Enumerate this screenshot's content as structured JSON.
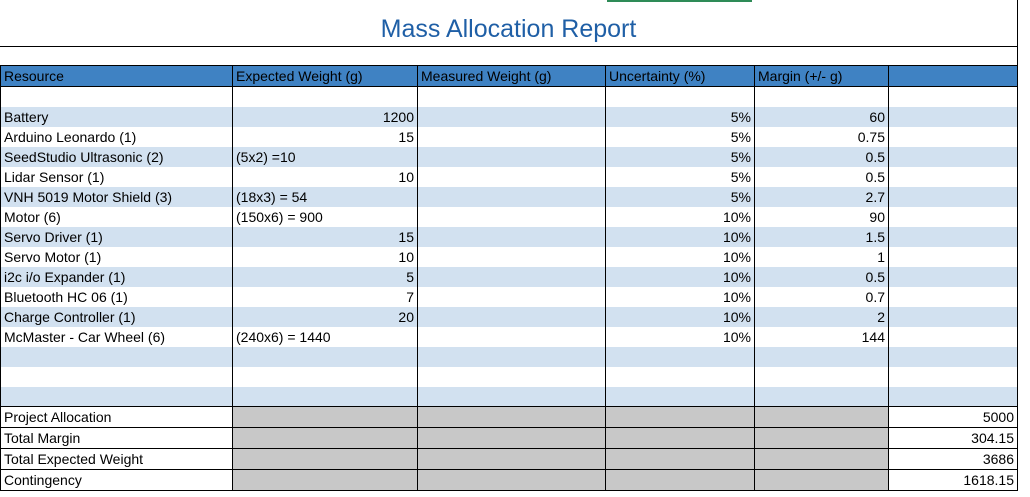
{
  "report": {
    "title": "Mass Allocation Report"
  },
  "columns": [
    "Resource",
    "Expected Weight (g)",
    "Measured Weight (g)",
    "Uncertainty (%)",
    "Margin (+/- g)",
    ""
  ],
  "items": [
    {
      "resource": "Battery",
      "expected": "1200",
      "measured": "",
      "uncertainty": "5%",
      "margin": "60"
    },
    {
      "resource": " Arduino Leonardo (1)",
      "expected": "15",
      "measured": "",
      "uncertainty": "5%",
      "margin": "0.75"
    },
    {
      "resource": "SeedStudio Ultrasonic (2)",
      "expected": "(5x2) =10",
      "measured": "",
      "uncertainty": "5%",
      "margin": "0.5"
    },
    {
      "resource": "Lidar Sensor (1)",
      "expected": "10",
      "measured": "",
      "uncertainty": "5%",
      "margin": "0.5"
    },
    {
      "resource": "VNH 5019 Motor Shield (3)",
      "expected": "(18x3) = 54",
      "measured": "",
      "uncertainty": "5%",
      "margin": "2.7"
    },
    {
      "resource": "Motor (6)",
      "expected": "(150x6) = 900",
      "measured": "",
      "uncertainty": "10%",
      "margin": "90"
    },
    {
      "resource": "Servo Driver (1)",
      "expected": "15",
      "measured": "",
      "uncertainty": "10%",
      "margin": "1.5"
    },
    {
      "resource": "Servo Motor (1)",
      "expected": "10",
      "measured": "",
      "uncertainty": "10%",
      "margin": "1"
    },
    {
      "resource": "i2c i/o Expander (1)",
      "expected": "5",
      "measured": "",
      "uncertainty": "10%",
      "margin": "0.5"
    },
    {
      "resource": "Bluetooth HC 06 (1)",
      "expected": "7",
      "measured": "",
      "uncertainty": "10%",
      "margin": "0.7"
    },
    {
      "resource": "Charge Controller (1)",
      "expected": "20",
      "measured": "",
      "uncertainty": "10%",
      "margin": "2"
    },
    {
      "resource": "McMaster - Car Wheel (6)",
      "expected": "(240x6) = 1440",
      "measured": "",
      "uncertainty": "10%",
      "margin": "144"
    }
  ],
  "summary": [
    {
      "label": "Project Allocation",
      "value": "5000"
    },
    {
      "label": "Total Margin",
      "value": "304.15"
    },
    {
      "label": "Total Expected Weight",
      "value": "3686"
    },
    {
      "label": "Contingency",
      "value": "1618.15"
    }
  ],
  "colors": {
    "header": "#3f82c3",
    "band": "#d2e1f0",
    "title": "#1f5fa6",
    "summary_fill": "#c8c8c8"
  }
}
